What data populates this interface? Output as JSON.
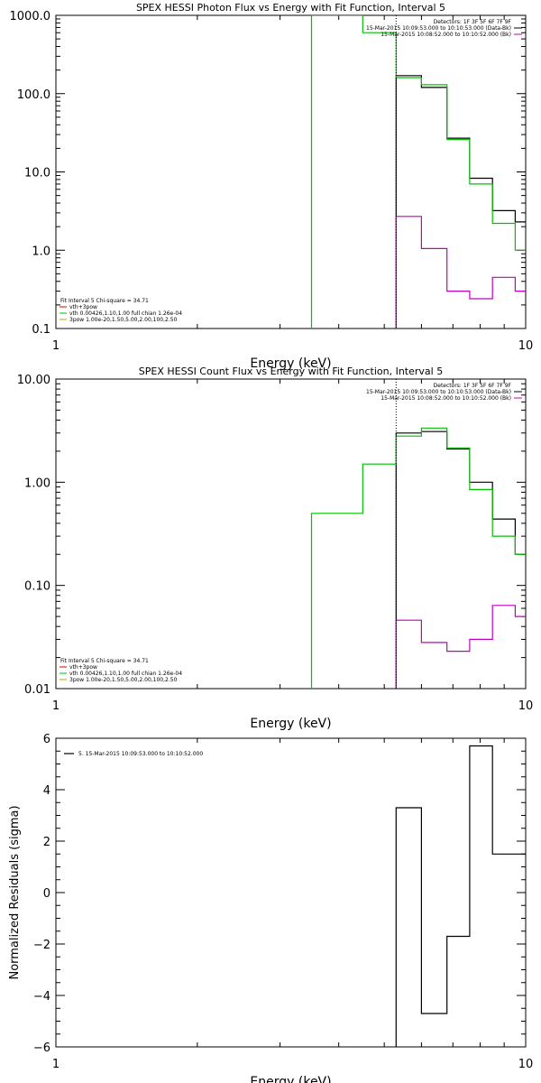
{
  "chart_data": [
    {
      "type": "line",
      "title": "SPEX HESSI Photon Flux vs Energy with Fit Function, Interval 5",
      "xlabel": "Energy (keV)",
      "ylabel": "",
      "x_scale": "log",
      "y_scale": "log",
      "xlim": [
        1,
        10
      ],
      "ylim": [
        0.1,
        1000
      ],
      "x_tick_labels": [
        "1",
        "10"
      ],
      "y_tick_labels": [
        "0.1",
        "1.0",
        "10.0",
        "100.0",
        "1000.0"
      ],
      "y_ticks": [
        0.1,
        1,
        10,
        100,
        1000
      ],
      "vline_x": 5.3,
      "vline_color": "#000000",
      "legend_topright": [
        {
          "text": "Detectors: 1F 3F 5F 6F 7F 9F",
          "color": "#000000"
        },
        {
          "text": "15-Mar-2015 10:09:53.000 to 10:10:53.000 (Data-Bk)",
          "color": "#000000"
        },
        {
          "text": "15-Mar-2015 10:08:52.000 to 10:10:52.000 (Bk)",
          "color": "#c000c0"
        }
      ],
      "legend_bottomleft": [
        {
          "text": "Fit Interval 5   Chi-square = 34.71",
          "color": "#000000"
        },
        {
          "text": "vth+3pow",
          "color": "#d00000"
        },
        {
          "text": "vth 0.00426,1.10,1.00  full chian 1.26e-04",
          "color": "#00c000"
        },
        {
          "text": "3pow 1.00e-20,1.50,5.00,2.00,100,2.50",
          "color": "#c0a000"
        }
      ],
      "series": [
        {
          "name": "",
          "color": "#000000",
          "x": [
            5.3,
            5.3,
            6.0,
            6.0,
            6.8,
            6.8,
            7.6,
            7.6,
            8.5,
            8.5,
            9.5,
            9.5,
            10.2
          ],
          "y": [
            0.1,
            170,
            170,
            120,
            120,
            27,
            27,
            8.3,
            8.3,
            3.2,
            3.2,
            2.3,
            2.3
          ]
        },
        {
          "name": "",
          "color": "#00c000",
          "x": [
            3.5,
            3.5,
            4.5,
            4.5,
            5.3,
            5.3,
            6.0,
            6.0,
            6.8,
            6.8,
            7.6,
            7.6,
            8.5,
            8.5,
            9.5,
            9.5,
            10.2
          ],
          "y": [
            0.1,
            1000,
            1000,
            600,
            600,
            160,
            160,
            130,
            130,
            26,
            26,
            7,
            7,
            2.2,
            2.2,
            1.0,
            1.0
          ]
        },
        {
          "name": "",
          "color": "#c000c0",
          "x": [
            5.3,
            5.3,
            6.0,
            6.0,
            6.8,
            6.8,
            7.6,
            7.6,
            8.5,
            8.5,
            9.5,
            9.5,
            10.2
          ],
          "y": [
            0.1,
            2.7,
            2.7,
            1.05,
            1.05,
            0.3,
            0.3,
            0.24,
            0.24,
            0.45,
            0.45,
            0.3,
            0.3
          ]
        }
      ]
    },
    {
      "type": "line",
      "title": "SPEX HESSI Count Flux vs Energy with Fit Function, Interval 5",
      "xlabel": "Energy (keV)",
      "ylabel": "",
      "x_scale": "log",
      "y_scale": "log",
      "xlim": [
        1,
        10
      ],
      "ylim": [
        0.01,
        10
      ],
      "x_tick_labels": [
        "1",
        "10"
      ],
      "y_tick_labels": [
        "0.01",
        "0.10",
        "1.00",
        "10.00"
      ],
      "y_ticks": [
        0.01,
        0.1,
        1,
        10
      ],
      "vline_x": 5.3,
      "vline_color": "#000000",
      "legend_topright": [
        {
          "text": "Detectors: 1F 3F 5F 6F 7F 9F",
          "color": "#000000"
        },
        {
          "text": "15-Mar-2015 10:09:53.000 to 10:10:53.000 (Data-Bk)",
          "color": "#000000"
        },
        {
          "text": "15-Mar-2015 10:08:52.000 to 10:10:52.000 (Bk)",
          "color": "#c000c0"
        }
      ],
      "legend_bottomleft": [
        {
          "text": "Fit Interval 5   Chi-square = 34.71",
          "color": "#000000"
        },
        {
          "text": "vth+3pow",
          "color": "#d00000"
        },
        {
          "text": "vth 0.00426,1.10,1.00  full chian 1.26e-04",
          "color": "#00c000"
        },
        {
          "text": "3pow 1.00e-20,1.50,5.00,2.00,100,2.50",
          "color": "#c0a000"
        }
      ],
      "series": [
        {
          "name": "",
          "color": "#000000",
          "x": [
            5.3,
            5.3,
            6.0,
            6.0,
            6.8,
            6.8,
            7.6,
            7.6,
            8.5,
            8.5,
            9.5,
            9.5,
            10.2
          ],
          "y": [
            0.01,
            3.0,
            3.0,
            3.1,
            3.1,
            2.1,
            2.1,
            1.0,
            1.0,
            0.44,
            0.44,
            0.2,
            0.2
          ]
        },
        {
          "name": "",
          "color": "#00c000",
          "x": [
            3.5,
            3.5,
            4.5,
            4.5,
            5.3,
            5.3,
            6.0,
            6.0,
            6.8,
            6.8,
            7.6,
            7.6,
            8.5,
            8.5,
            9.5,
            9.5,
            10.2
          ],
          "y": [
            0.01,
            0.5,
            0.5,
            1.5,
            1.5,
            2.8,
            2.8,
            3.35,
            3.35,
            2.15,
            2.15,
            0.85,
            0.85,
            0.3,
            0.3,
            0.2,
            0.2
          ]
        },
        {
          "name": "",
          "color": "#c000c0",
          "x": [
            5.3,
            5.3,
            6.0,
            6.0,
            6.8,
            6.8,
            7.6,
            7.6,
            8.5,
            8.5,
            9.5,
            9.5,
            10.2
          ],
          "y": [
            0.01,
            0.046,
            0.046,
            0.028,
            0.028,
            0.023,
            0.023,
            0.03,
            0.03,
            0.064,
            0.064,
            0.05,
            0.05
          ]
        }
      ]
    },
    {
      "type": "line",
      "title": "",
      "xlabel": "Energy (keV)",
      "ylabel": "Normalized Residuals (sigma)",
      "x_scale": "log",
      "y_scale": "linear",
      "xlim": [
        1,
        10
      ],
      "ylim": [
        -6,
        6
      ],
      "x_tick_labels": [
        "1",
        "10"
      ],
      "y_tick_labels": [
        "−6",
        "−4",
        "−2",
        "0",
        "2",
        "4",
        "6"
      ],
      "y_ticks": [
        -6,
        -4,
        -2,
        0,
        2,
        4,
        6
      ],
      "legend_topleft": [
        {
          "text": "5. 15-Mar-2015 10:09:53.000 to 10:10:52.000",
          "color": "#000000"
        }
      ],
      "series": [
        {
          "name": "5. 15-Mar-2015 10:09:53.000 to 10:10:52.000",
          "color": "#000000",
          "x": [
            5.3,
            5.3,
            6.0,
            6.0,
            6.8,
            6.8,
            7.6,
            7.6,
            8.5,
            8.5,
            9.5,
            9.5,
            10.2
          ],
          "y": [
            -6,
            3.3,
            3.3,
            -4.7,
            -4.7,
            -1.7,
            -1.7,
            5.7,
            5.7,
            1.5,
            1.5,
            1.5,
            1.5
          ]
        }
      ]
    }
  ]
}
